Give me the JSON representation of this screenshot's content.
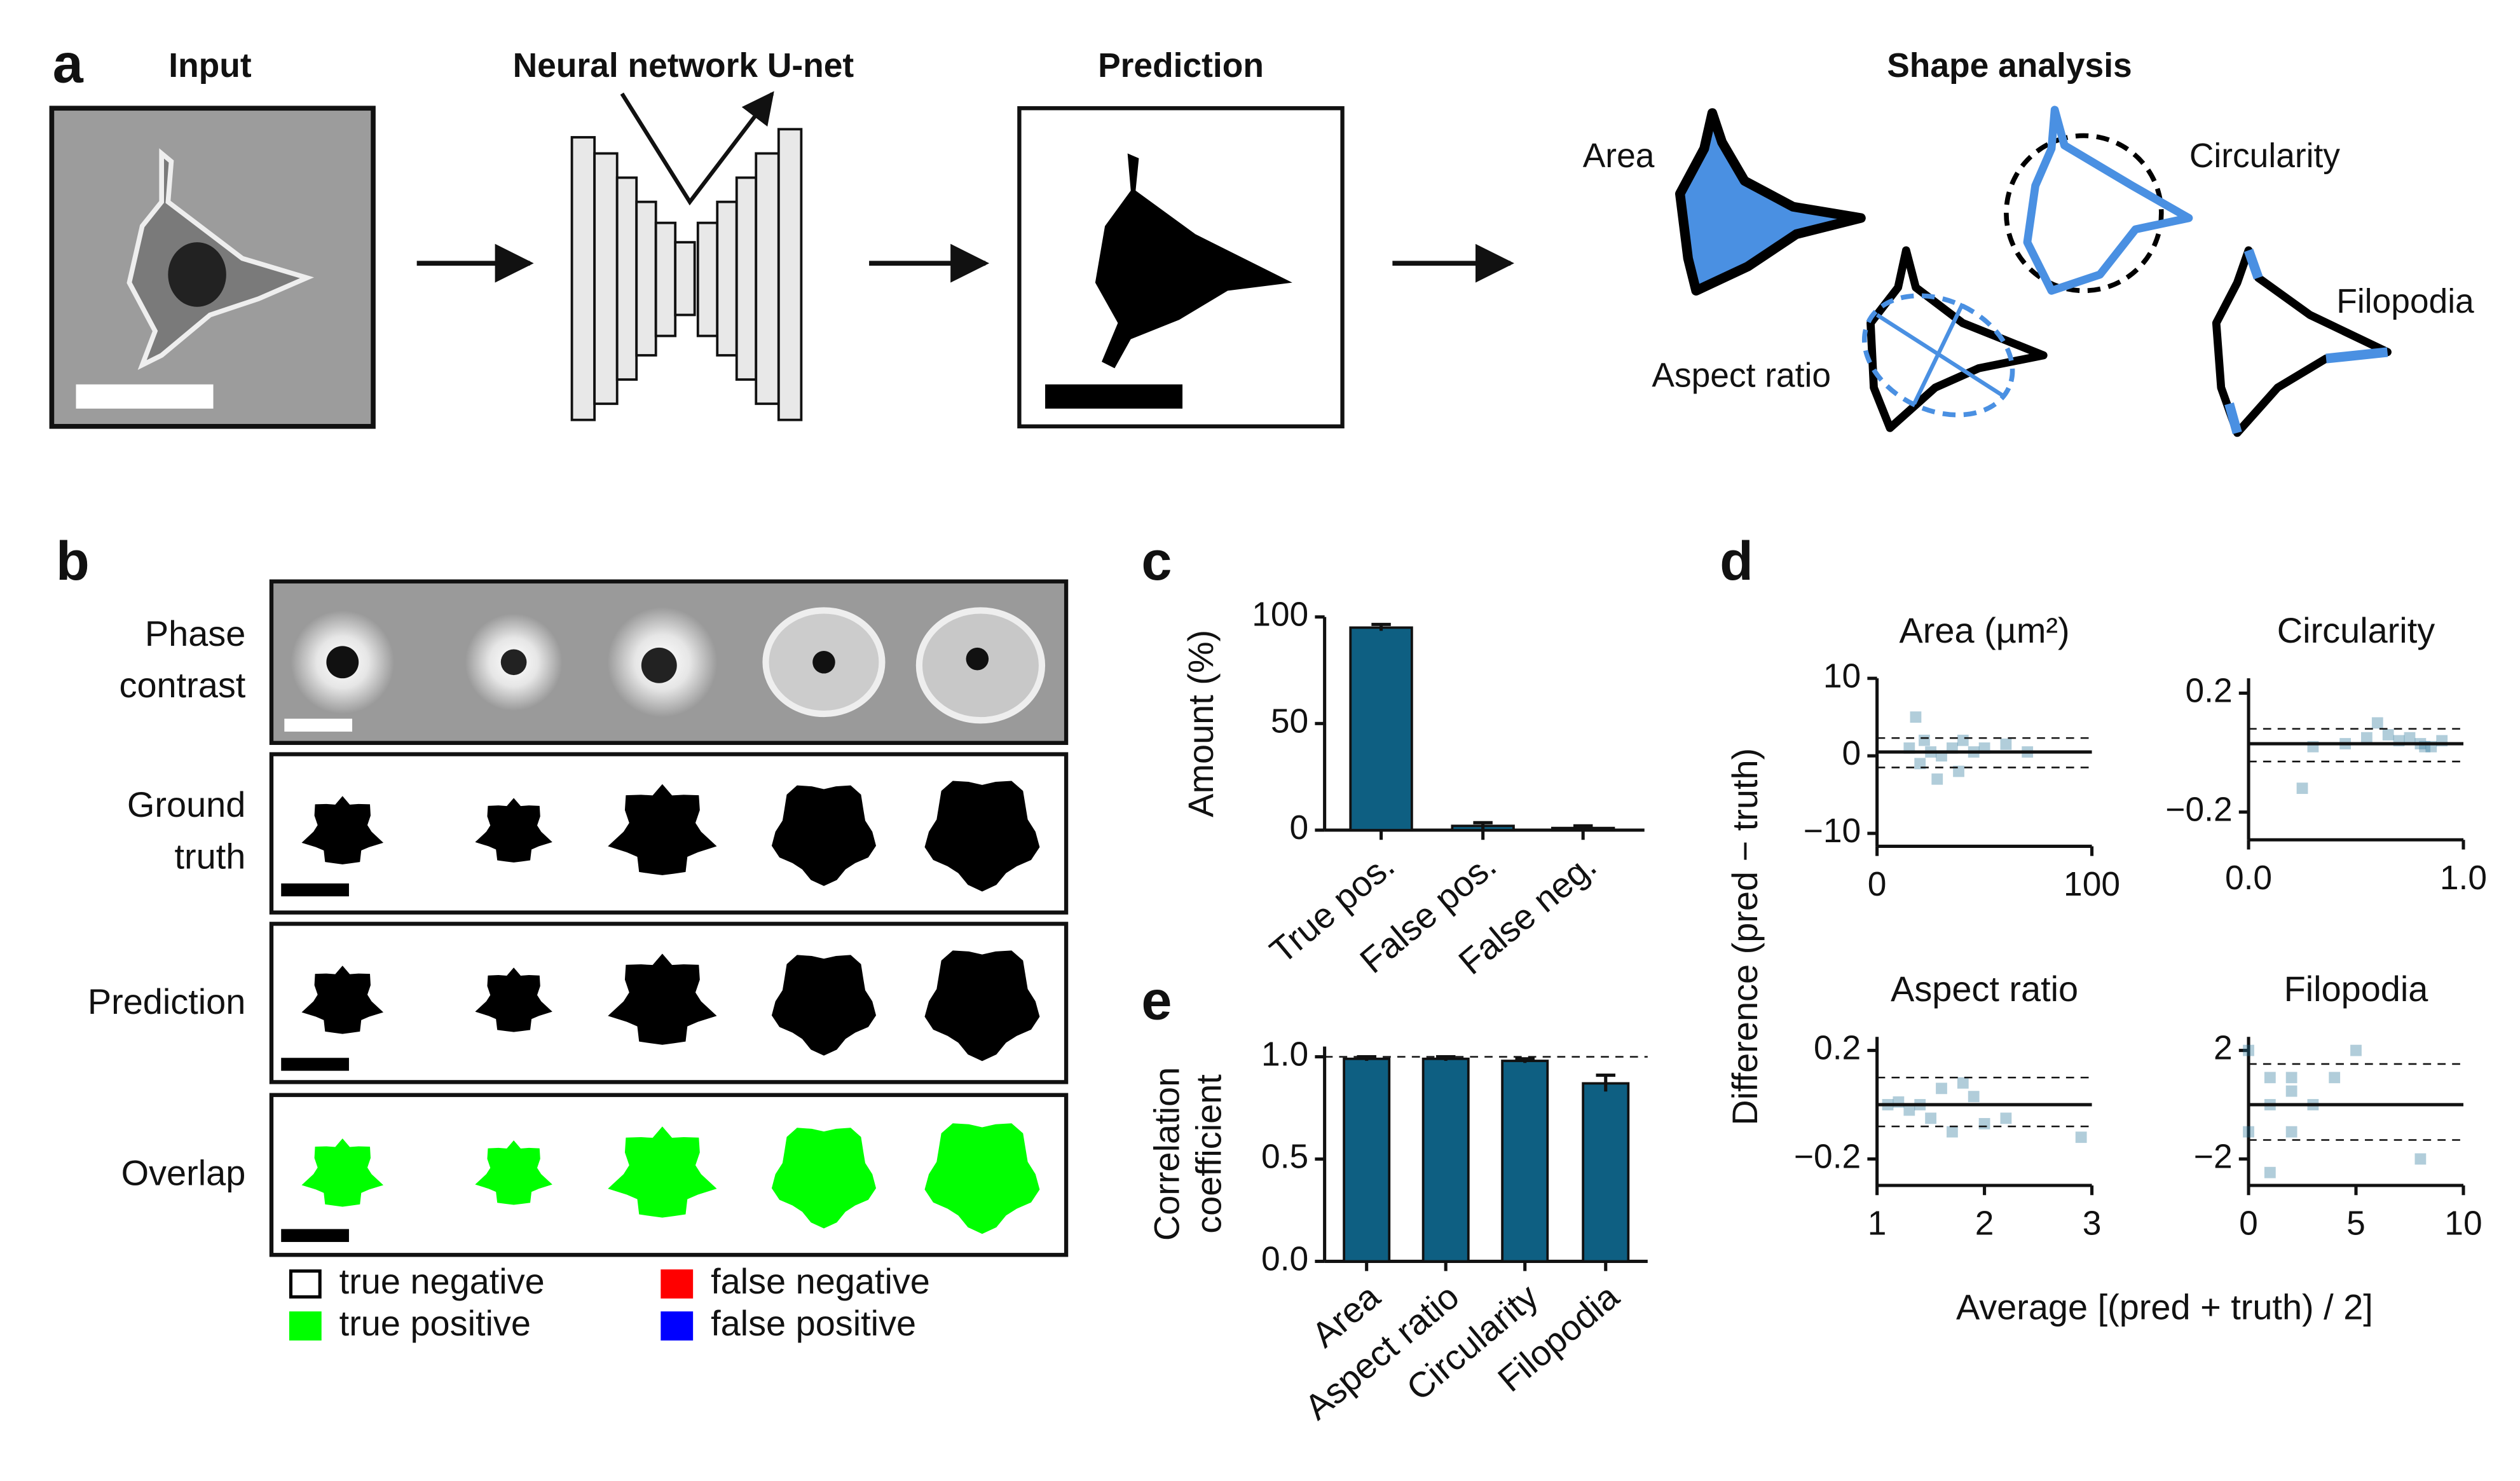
{
  "panel_a": {
    "label": "a",
    "titles": [
      "Input",
      "Neural network U-net",
      "Prediction",
      "Shape analysis"
    ],
    "shape_labels": [
      "Area",
      "Circularity",
      "Aspect ratio",
      "Filopodia"
    ]
  },
  "panel_b": {
    "label": "b",
    "rows": [
      [
        "Phase",
        "contrast"
      ],
      [
        "Ground",
        "truth"
      ],
      [
        "Prediction"
      ],
      [
        "Overlap"
      ]
    ],
    "legend": [
      {
        "label": "true negative",
        "color": "#ffffff"
      },
      {
        "label": "false negative",
        "color": "#ff0000"
      },
      {
        "label": "true positive",
        "color": "#00ff00"
      },
      {
        "label": "false positive",
        "color": "#0000ff"
      }
    ]
  },
  "panel_d": {
    "label": "d",
    "xlabel": "Average [(pred + truth) / 2]",
    "ylabel": "Difference (pred − truth)"
  },
  "chart_data": [
    {
      "type": "bar",
      "label": "c",
      "ylabel": "Amount (%)",
      "categories": [
        "True pos.",
        "False pos.",
        "False neg."
      ],
      "values": [
        95,
        2,
        1
      ],
      "errors": [
        1.5,
        1.5,
        1
      ],
      "color": "#0e5f82",
      "ylim": [
        0,
        100
      ],
      "yticks": [
        0,
        50,
        100
      ]
    },
    {
      "type": "bar",
      "label": "e",
      "ylabel": [
        "Correlation",
        "coefficient"
      ],
      "categories": [
        "Area",
        "Aspect ratio",
        "Circularity",
        "Filopodia"
      ],
      "values": [
        0.99,
        0.99,
        0.98,
        0.87
      ],
      "errors": [
        0.01,
        0.01,
        0.01,
        0.04
      ],
      "color": "#0e5f82",
      "ylim": [
        0,
        1.05
      ],
      "yticks": [
        {
          "value": 0,
          "label": "0.0"
        },
        {
          "value": 0.5,
          "label": "0.5"
        },
        {
          "value": 1,
          "label": "1.0"
        }
      ],
      "reference_line": 1
    },
    {
      "type": "scatter",
      "title": "Area (µm²)",
      "color": "#1f6f95",
      "x": [
        15,
        20,
        25,
        30,
        35,
        40,
        45,
        50,
        60,
        70,
        18,
        28,
        38,
        22
      ],
      "y": [
        1,
        -1,
        0.5,
        0,
        1,
        2,
        0.5,
        1,
        1.5,
        0.5,
        5,
        -3,
        -2,
        2
      ],
      "mean": 0.5,
      "limits": [
        -1.5,
        2.3
      ],
      "xlim": [
        0,
        100
      ],
      "xticks": [
        0,
        100
      ],
      "ylim": [
        -10,
        10
      ],
      "yticks": [
        {
          "value": -10,
          "label": "−10"
        },
        0,
        10
      ]
    },
    {
      "type": "scatter",
      "title": "Circularity",
      "color": "#1f6f95",
      "x": [
        0.3,
        0.45,
        0.55,
        0.65,
        0.7,
        0.75,
        0.8,
        0.85,
        0.9,
        0.82,
        0.25,
        0.6
      ],
      "y": [
        0.02,
        0.03,
        0.05,
        0.06,
        0.04,
        0.05,
        0.03,
        0.02,
        0.04,
        0.02,
        -0.12,
        0.1
      ],
      "mean": 0.03,
      "limits": [
        -0.03,
        0.08
      ],
      "xlim": [
        0,
        1
      ],
      "xticks": [
        {
          "value": 0,
          "label": "0.0"
        },
        {
          "value": 1,
          "label": "1.0"
        }
      ],
      "ylim": [
        -0.25,
        0.25
      ],
      "yticks": [
        {
          "value": -0.2,
          "label": "−0.2"
        },
        0.2
      ]
    },
    {
      "type": "scatter",
      "title": "Aspect ratio",
      "color": "#1f6f95",
      "x": [
        1.1,
        1.2,
        1.3,
        1.4,
        1.5,
        1.6,
        1.7,
        1.8,
        2,
        2.2,
        2.9,
        1.9
      ],
      "y": [
        0,
        0.01,
        -0.02,
        0,
        -0.05,
        0.06,
        -0.1,
        0.08,
        -0.07,
        -0.05,
        -0.12,
        0.03
      ],
      "mean": 0,
      "limits": [
        -0.08,
        0.1
      ],
      "xlim": [
        1,
        3
      ],
      "xticks": [
        1,
        2,
        3
      ],
      "ylim": [
        -0.25,
        0.25
      ],
      "yticks": [
        {
          "value": -0.2,
          "label": "−0.2"
        },
        0.2
      ]
    },
    {
      "type": "scatter",
      "title": "Filopodia",
      "color": "#1f6f95",
      "x": [
        0,
        0,
        1,
        1,
        2,
        2,
        3,
        4,
        5,
        8,
        1,
        2
      ],
      "y": [
        2,
        -1,
        1,
        0,
        0.5,
        -1,
        0,
        1,
        2,
        -2,
        -2.5,
        1
      ],
      "mean": 0,
      "limits": [
        -1.3,
        1.5
      ],
      "xlim": [
        0,
        10
      ],
      "xticks": [
        0,
        5,
        10
      ],
      "ylim": [
        -2.5,
        2.5
      ],
      "yticks": [
        {
          "value": -2,
          "label": "−2"
        },
        2
      ]
    }
  ]
}
